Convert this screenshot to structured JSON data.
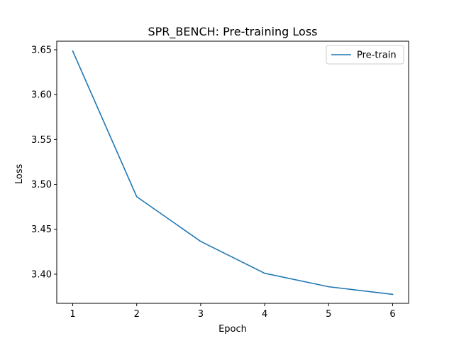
{
  "chart_data": {
    "type": "line",
    "title": "SPR_BENCH: Pre-training Loss",
    "xlabel": "Epoch",
    "ylabel": "Loss",
    "x": [
      1,
      2,
      3,
      4,
      5,
      6
    ],
    "x_ticks": [
      "1",
      "2",
      "3",
      "4",
      "5",
      "6"
    ],
    "y_ticks": [
      "3.40",
      "3.45",
      "3.50",
      "3.55",
      "3.60",
      "3.65"
    ],
    "xlim": [
      0.75,
      6.25
    ],
    "ylim": [
      3.3675,
      3.6595
    ],
    "grid": false,
    "legend_position": "top-right",
    "series": [
      {
        "name": "Pre-train",
        "color": "#1f77b4",
        "values": [
          3.6485,
          3.4863,
          3.4365,
          3.401,
          3.386,
          3.3775
        ]
      }
    ]
  }
}
